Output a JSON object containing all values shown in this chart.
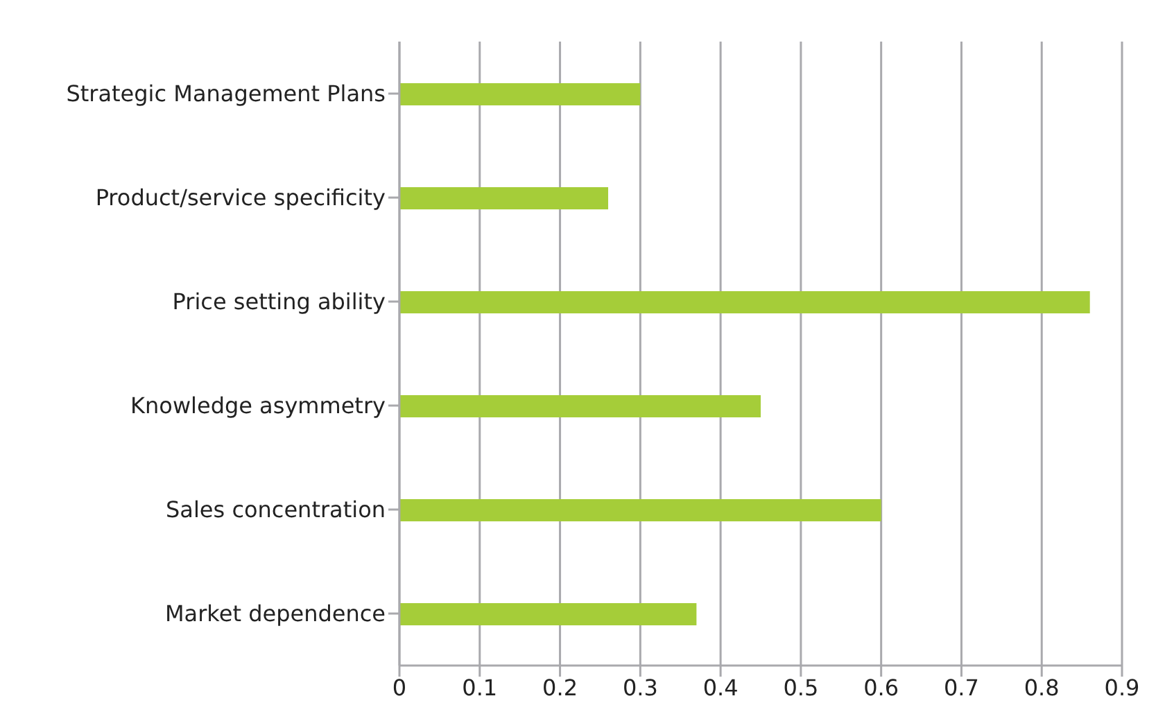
{
  "chart_data": {
    "type": "bar",
    "orientation": "horizontal",
    "categories": [
      "Strategic Management Plans",
      "Product/service specificity",
      "Price setting ability",
      "Knowledge asymmetry",
      "Sales concentration",
      "Market dependence"
    ],
    "values": [
      0.3,
      0.26,
      0.86,
      0.45,
      0.6,
      0.37
    ],
    "color": "#a5cd39",
    "xlim": [
      0,
      0.9
    ],
    "xticks": [
      0,
      0.1,
      0.2,
      0.3,
      0.4,
      0.5,
      0.6,
      0.7,
      0.8,
      0.9
    ],
    "grid": "x",
    "legend": false
  }
}
